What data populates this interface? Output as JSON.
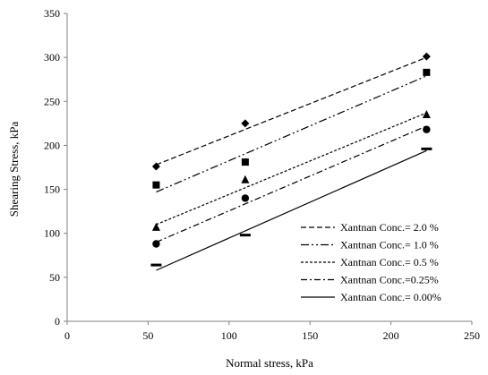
{
  "chart_data": {
    "type": "scatter",
    "title": "",
    "xlabel": "Normal stress, kPa",
    "ylabel": "Shearing Stress, kPa",
    "xlim": [
      0,
      250
    ],
    "ylim": [
      0,
      350
    ],
    "x_ticks": [
      0,
      50,
      100,
      150,
      200,
      250
    ],
    "y_ticks": [
      0,
      50,
      100,
      150,
      200,
      250,
      300,
      350
    ],
    "grid": false,
    "legend_position": "bottom-right",
    "series": [
      {
        "name": "Xantnan Conc.= 2.0 %",
        "marker": "diamond",
        "line_style": "dashed",
        "points": [
          [
            55,
            176
          ],
          [
            110,
            225
          ],
          [
            222,
            301
          ]
        ],
        "fit_line": [
          [
            55,
            178
          ],
          [
            222,
            300
          ]
        ]
      },
      {
        "name": "Xantnan Conc.= 1.0 %",
        "marker": "square",
        "line_style": "dash-dot-dot",
        "points": [
          [
            55,
            155
          ],
          [
            110,
            181
          ],
          [
            222,
            283
          ]
        ],
        "fit_line": [
          [
            55,
            147
          ],
          [
            222,
            279
          ]
        ]
      },
      {
        "name": "Xantnan Conc.= 0.5 %",
        "marker": "triangle",
        "line_style": "short-dashed",
        "points": [
          [
            55,
            107
          ],
          [
            110,
            161
          ],
          [
            222,
            235
          ]
        ],
        "fit_line": [
          [
            55,
            110
          ],
          [
            222,
            237
          ]
        ]
      },
      {
        "name": "Xantnan Conc.=0.25%",
        "marker": "circle",
        "line_style": "dash-dot",
        "points": [
          [
            55,
            88
          ],
          [
            110,
            140
          ],
          [
            222,
            218
          ]
        ],
        "fit_line": [
          [
            55,
            90
          ],
          [
            222,
            222
          ]
        ]
      },
      {
        "name": "Xantnan Conc.= 0.00%",
        "marker": "dash",
        "line_style": "solid",
        "points": [
          [
            55,
            64
          ],
          [
            110,
            98
          ],
          [
            222,
            196
          ]
        ],
        "fit_line": [
          [
            55,
            58
          ],
          [
            222,
            194
          ]
        ]
      }
    ]
  }
}
